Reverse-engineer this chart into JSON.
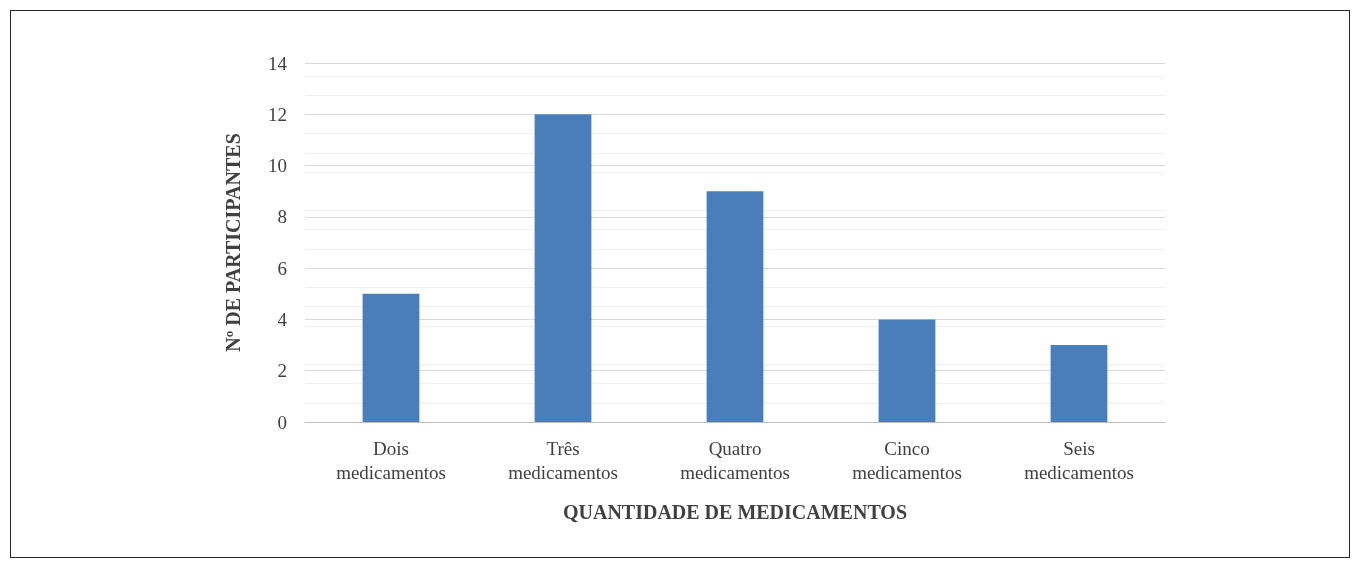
{
  "chart_data": {
    "type": "bar",
    "xlabel": "QUANTIDADE DE MEDICAMENTOS",
    "ylabel": "Nº DE PARTICIPANTES",
    "categories": [
      "Dois\nmedicamentos",
      "Três\nmedicamentos",
      "Quatro\nmedicamentos",
      "Cinco\nmedicamentos",
      "Seis\nmedicamentos"
    ],
    "values": [
      5,
      12,
      9,
      4,
      3
    ],
    "color": "#4a7ebb",
    "ylim": [
      0,
      14
    ],
    "yticks": [
      0,
      2,
      4,
      6,
      8,
      10,
      12,
      14
    ],
    "grid": "y"
  }
}
